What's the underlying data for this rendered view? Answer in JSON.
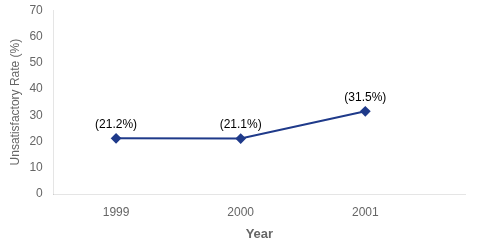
{
  "chart_data": {
    "type": "line",
    "x": [
      1999,
      2000,
      2001
    ],
    "values": [
      21.2,
      21.1,
      31.5
    ],
    "value_labels": [
      "(21.2%)",
      "(21.1%)",
      "(31.5%)"
    ],
    "data_labels": true,
    "xlabel": "Year",
    "ylabel": "Unsatisfactory Rate (%)",
    "xlim": [
      1998.5,
      2001.8
    ],
    "xticks": [
      1999,
      2000,
      2001
    ],
    "ylim": [
      0,
      70
    ],
    "yticks": [
      0,
      10,
      20,
      30,
      40,
      50,
      60,
      70
    ],
    "color": "#1F3A8A",
    "marker": "diamond",
    "grid": false
  }
}
